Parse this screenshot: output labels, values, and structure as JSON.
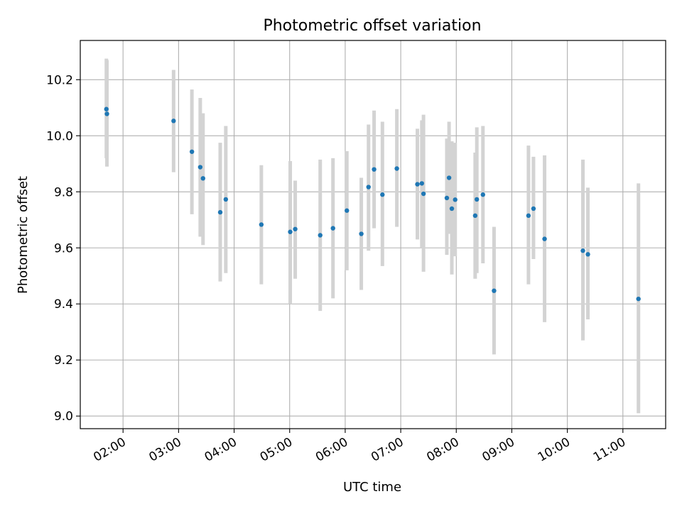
{
  "chart_data": {
    "type": "scatter",
    "title": "Photometric offset variation",
    "xlabel": "UTC time",
    "ylabel": "Photometric offset",
    "x_unit": "hours UTC",
    "xlim": [
      1.23,
      11.77
    ],
    "ylim": [
      8.955,
      10.34
    ],
    "x_ticks": [
      {
        "value": 2,
        "label": "02:00"
      },
      {
        "value": 3,
        "label": "03:00"
      },
      {
        "value": 4,
        "label": "04:00"
      },
      {
        "value": 5,
        "label": "05:00"
      },
      {
        "value": 6,
        "label": "06:00"
      },
      {
        "value": 7,
        "label": "07:00"
      },
      {
        "value": 8,
        "label": "08:00"
      },
      {
        "value": 9,
        "label": "09:00"
      },
      {
        "value": 10,
        "label": "10:00"
      },
      {
        "value": 11,
        "label": "11:00"
      }
    ],
    "y_ticks": [
      {
        "value": 9.0,
        "label": "9.0"
      },
      {
        "value": 9.2,
        "label": "9.2"
      },
      {
        "value": 9.4,
        "label": "9.4"
      },
      {
        "value": 9.6,
        "label": "9.6"
      },
      {
        "value": 9.8,
        "label": "9.8"
      },
      {
        "value": 10.0,
        "label": "10.0"
      },
      {
        "value": 10.2,
        "label": "10.2"
      }
    ],
    "grid": true,
    "marker_color": "#1f77b4",
    "errorbar_color": "#d3d3d3",
    "points": [
      {
        "x": 1.7,
        "y": 10.095,
        "lo": 9.92,
        "hi": 10.275
      },
      {
        "x": 1.71,
        "y": 10.078,
        "lo": 9.89,
        "hi": 10.27
      },
      {
        "x": 2.91,
        "y": 10.053,
        "lo": 9.87,
        "hi": 10.235
      },
      {
        "x": 3.24,
        "y": 9.943,
        "lo": 9.72,
        "hi": 10.165
      },
      {
        "x": 3.39,
        "y": 9.888,
        "lo": 9.64,
        "hi": 10.135
      },
      {
        "x": 3.44,
        "y": 9.848,
        "lo": 9.61,
        "hi": 10.08
      },
      {
        "x": 3.75,
        "y": 9.727,
        "lo": 9.48,
        "hi": 9.975
      },
      {
        "x": 3.85,
        "y": 9.773,
        "lo": 9.51,
        "hi": 10.035
      },
      {
        "x": 4.49,
        "y": 9.683,
        "lo": 9.47,
        "hi": 9.895
      },
      {
        "x": 5.01,
        "y": 9.657,
        "lo": 9.4,
        "hi": 9.91
      },
      {
        "x": 5.1,
        "y": 9.667,
        "lo": 9.49,
        "hi": 9.84
      },
      {
        "x": 5.55,
        "y": 9.645,
        "lo": 9.375,
        "hi": 9.915
      },
      {
        "x": 5.78,
        "y": 9.67,
        "lo": 9.42,
        "hi": 9.92
      },
      {
        "x": 6.03,
        "y": 9.733,
        "lo": 9.52,
        "hi": 9.945
      },
      {
        "x": 6.29,
        "y": 9.65,
        "lo": 9.45,
        "hi": 9.85
      },
      {
        "x": 6.42,
        "y": 9.817,
        "lo": 9.59,
        "hi": 10.04
      },
      {
        "x": 6.52,
        "y": 9.88,
        "lo": 9.67,
        "hi": 10.09
      },
      {
        "x": 6.67,
        "y": 9.79,
        "lo": 9.535,
        "hi": 10.05
      },
      {
        "x": 6.93,
        "y": 9.883,
        "lo": 9.675,
        "hi": 10.095
      },
      {
        "x": 7.3,
        "y": 9.827,
        "lo": 9.63,
        "hi": 10.025
      },
      {
        "x": 7.38,
        "y": 9.83,
        "lo": 9.6,
        "hi": 10.055
      },
      {
        "x": 7.41,
        "y": 9.793,
        "lo": 9.515,
        "hi": 10.075
      },
      {
        "x": 7.83,
        "y": 9.778,
        "lo": 9.575,
        "hi": 9.99
      },
      {
        "x": 7.87,
        "y": 9.85,
        "lo": 9.65,
        "hi": 10.05
      },
      {
        "x": 7.92,
        "y": 9.74,
        "lo": 9.505,
        "hi": 9.98
      },
      {
        "x": 7.98,
        "y": 9.772,
        "lo": 9.57,
        "hi": 9.975
      },
      {
        "x": 8.34,
        "y": 9.715,
        "lo": 9.49,
        "hi": 9.94
      },
      {
        "x": 8.37,
        "y": 9.773,
        "lo": 9.51,
        "hi": 10.03
      },
      {
        "x": 8.48,
        "y": 9.79,
        "lo": 9.545,
        "hi": 10.035
      },
      {
        "x": 8.68,
        "y": 9.447,
        "lo": 9.22,
        "hi": 9.675
      },
      {
        "x": 9.3,
        "y": 9.715,
        "lo": 9.47,
        "hi": 9.965
      },
      {
        "x": 9.39,
        "y": 9.74,
        "lo": 9.56,
        "hi": 9.925
      },
      {
        "x": 9.59,
        "y": 9.632,
        "lo": 9.335,
        "hi": 9.93
      },
      {
        "x": 10.28,
        "y": 9.59,
        "lo": 9.27,
        "hi": 9.915
      },
      {
        "x": 10.37,
        "y": 9.577,
        "lo": 9.345,
        "hi": 9.815
      },
      {
        "x": 11.28,
        "y": 9.418,
        "lo": 9.01,
        "hi": 9.83
      }
    ]
  }
}
